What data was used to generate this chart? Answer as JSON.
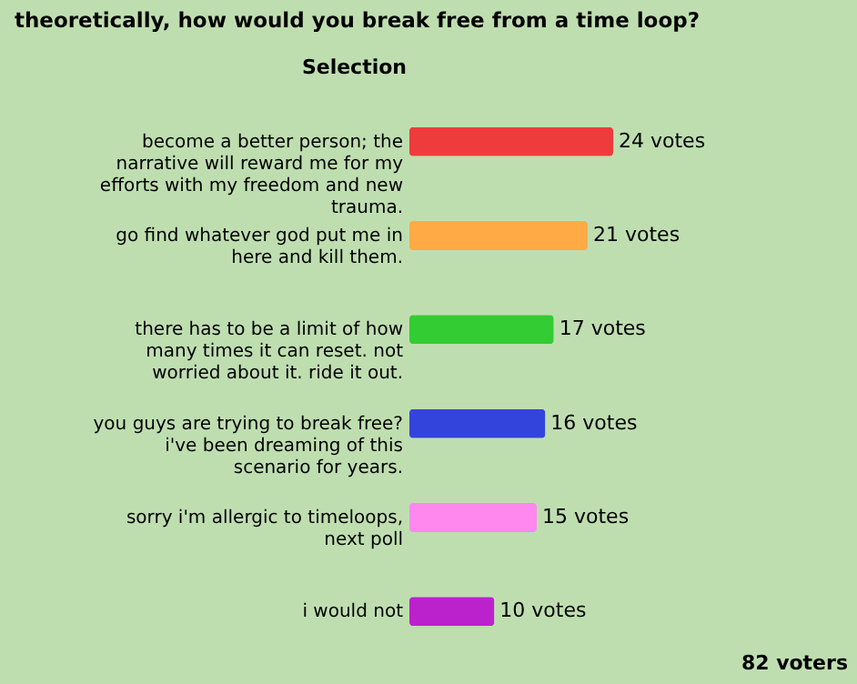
{
  "chart_data": {
    "type": "bar",
    "orientation": "horizontal",
    "title": "theoretically, how would you break free from a time loop?",
    "ylabel": "Selection",
    "categories": [
      "become a better person; the narrative will reward me for my efforts with my freedom and new trauma.",
      "go find whatever god put me in here and kill them.",
      "there has to be a limit of how many times it can reset. not worried about it. ride it out.",
      "you guys are trying to break free? i've been dreaming of this scenario for years.",
      "sorry i'm allergic to timeloops, next poll",
      "i would not"
    ],
    "values": [
      24,
      21,
      17,
      16,
      15,
      10
    ],
    "colors": [
      "#ee3b3b",
      "#ffaa44",
      "#33cc33",
      "#3344dd",
      "#ff88ee",
      "#bb22cc"
    ],
    "value_labels": [
      "24 votes",
      "21 votes",
      "17 votes",
      "16 votes",
      "15 votes",
      "10 votes"
    ],
    "annotations": [
      "82 voters"
    ]
  }
}
